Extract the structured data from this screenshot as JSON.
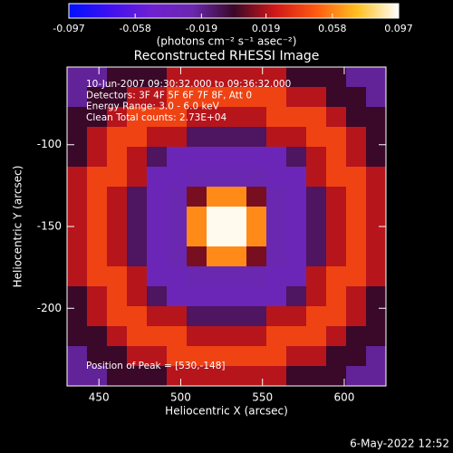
{
  "chart_data": {
    "type": "heatmap",
    "title": "Reconstructed RHESSI Image",
    "x_label": "Heliocentric X (arcsec)",
    "y_label": "Heliocentric Y (arcsec)",
    "colorbar_label": "(photons cm⁻² s⁻¹ asec⁻²)",
    "annotations": [
      "10-Jun-2007 09:30:32.000 to 09:36:32.000",
      "Detectors: 3F 4F 5F 6F 7F 8F, Att 0",
      "Energy Range: 3.0 - 6.0 keV",
      "Clean     Total counts: 2.73E+04"
    ],
    "peak_label": "Position of Peak = [530,-148]",
    "footer": "6-May-2022 12:52",
    "xlim": [
      430.5,
      625.5
    ],
    "ylim": [
      -247.5,
      -52.5
    ],
    "xticks": [
      450,
      500,
      550,
      600
    ],
    "yticks": [
      -100,
      -150,
      -200
    ],
    "clim": [
      -0.097,
      0.097
    ],
    "cticks": [
      -0.097,
      -0.058,
      -0.019,
      0.019,
      0.058,
      0.097
    ],
    "colormap": [
      "#0010ff",
      "#4010f0",
      "#7020d0",
      "#6a28b0",
      "#3a0828",
      "#d01818",
      "#ff5a10",
      "#ffc020",
      "#ffffff"
    ],
    "z": [
      [
        -0.02,
        -0.02,
        0,
        0,
        0,
        0.02,
        0.02,
        0.02,
        0.02,
        0.02,
        0.02,
        0,
        0,
        0,
        -0.02,
        -0.02
      ],
      [
        -0.02,
        0,
        0,
        0.02,
        0.02,
        0.04,
        0.04,
        0.04,
        0.04,
        0.04,
        0.04,
        0.02,
        0.02,
        0,
        0,
        -0.02
      ],
      [
        0,
        0,
        0.02,
        0.04,
        0.04,
        0.04,
        0.02,
        0.02,
        0.02,
        0.02,
        0.04,
        0.04,
        0.04,
        0.02,
        0,
        0
      ],
      [
        0,
        0.02,
        0.04,
        0.04,
        0.02,
        0.02,
        -0.01,
        -0.01,
        -0.01,
        -0.01,
        0.02,
        0.02,
        0.04,
        0.04,
        0.02,
        0
      ],
      [
        0,
        0.02,
        0.04,
        0.02,
        -0.01,
        -0.03,
        -0.03,
        -0.03,
        -0.03,
        -0.03,
        -0.03,
        -0.01,
        0.02,
        0.04,
        0.02,
        0
      ],
      [
        0.02,
        0.04,
        0.04,
        0.02,
        -0.03,
        -0.03,
        -0.025,
        -0.025,
        -0.025,
        -0.025,
        -0.03,
        -0.03,
        0.02,
        0.04,
        0.04,
        0.02
      ],
      [
        0.02,
        0.04,
        0.02,
        -0.01,
        -0.03,
        -0.025,
        0.01,
        0.06,
        0.06,
        0.01,
        -0.025,
        -0.03,
        -0.01,
        0.02,
        0.04,
        0.02
      ],
      [
        0.02,
        0.04,
        0.02,
        -0.01,
        -0.03,
        -0.025,
        0.06,
        0.095,
        0.095,
        0.06,
        -0.025,
        -0.03,
        -0.01,
        0.02,
        0.04,
        0.02
      ],
      [
        0.02,
        0.04,
        0.02,
        -0.01,
        -0.03,
        -0.025,
        0.06,
        0.095,
        0.095,
        0.06,
        -0.025,
        -0.03,
        -0.01,
        0.02,
        0.04,
        0.02
      ],
      [
        0.02,
        0.04,
        0.02,
        -0.01,
        -0.03,
        -0.025,
        0.01,
        0.06,
        0.06,
        0.01,
        -0.025,
        -0.03,
        -0.01,
        0.02,
        0.04,
        0.02
      ],
      [
        0.02,
        0.04,
        0.04,
        0.02,
        -0.03,
        -0.03,
        -0.025,
        -0.025,
        -0.025,
        -0.025,
        -0.03,
        -0.03,
        0.02,
        0.04,
        0.04,
        0.02
      ],
      [
        0,
        0.02,
        0.04,
        0.02,
        -0.01,
        -0.03,
        -0.03,
        -0.03,
        -0.03,
        -0.03,
        -0.03,
        -0.01,
        0.02,
        0.04,
        0.02,
        0
      ],
      [
        0,
        0.02,
        0.04,
        0.04,
        0.02,
        0.02,
        -0.01,
        -0.01,
        -0.01,
        -0.01,
        0.02,
        0.02,
        0.04,
        0.04,
        0.02,
        0
      ],
      [
        0,
        0,
        0.02,
        0.04,
        0.04,
        0.04,
        0.02,
        0.02,
        0.02,
        0.02,
        0.04,
        0.04,
        0.04,
        0.02,
        0,
        0
      ],
      [
        -0.02,
        0,
        0,
        0.02,
        0.02,
        0.04,
        0.04,
        0.04,
        0.04,
        0.04,
        0.04,
        0.02,
        0.02,
        0,
        0,
        -0.02
      ],
      [
        -0.02,
        -0.02,
        0,
        0,
        0,
        0.02,
        0.02,
        0.02,
        0.02,
        0.02,
        0.02,
        0,
        0,
        0,
        -0.02,
        -0.02
      ]
    ]
  }
}
